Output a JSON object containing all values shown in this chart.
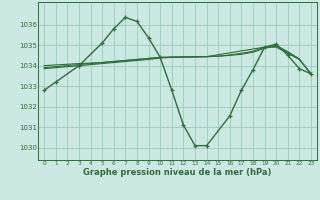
{
  "title": "Graphe pression niveau de la mer (hPa)",
  "bg_color": "#cce8e2",
  "grid_color": "#99ccbb",
  "line_color": "#2d6e3a",
  "xlim": [
    -0.5,
    23.5
  ],
  "ylim": [
    1029.4,
    1037.1
  ],
  "yticks": [
    1030,
    1031,
    1032,
    1033,
    1034,
    1035,
    1036
  ],
  "xticks": [
    0,
    1,
    2,
    3,
    4,
    5,
    6,
    7,
    8,
    9,
    10,
    11,
    12,
    13,
    14,
    15,
    16,
    17,
    18,
    19,
    20,
    21,
    22,
    23
  ],
  "main_x": [
    0,
    1,
    3,
    5,
    6,
    7,
    8,
    9,
    10,
    11,
    12,
    13,
    14,
    16,
    17,
    18,
    19,
    20,
    21,
    22,
    23
  ],
  "main_y": [
    1032.8,
    1033.2,
    1034.0,
    1035.1,
    1035.8,
    1036.35,
    1036.15,
    1035.35,
    1034.4,
    1032.8,
    1031.1,
    1030.1,
    1030.1,
    1031.55,
    1032.8,
    1033.8,
    1034.9,
    1035.05,
    1034.5,
    1033.85,
    1033.6
  ],
  "flat1_x": [
    0,
    1,
    2,
    3,
    4,
    5,
    6,
    7,
    8,
    9,
    10,
    11,
    12,
    13,
    14,
    15,
    16,
    17,
    18,
    19,
    20,
    21,
    22,
    23
  ],
  "flat1_y": [
    1033.9,
    1033.95,
    1034.0,
    1034.05,
    1034.1,
    1034.15,
    1034.2,
    1034.25,
    1034.3,
    1034.35,
    1034.4,
    1034.42,
    1034.43,
    1034.44,
    1034.44,
    1034.46,
    1034.5,
    1034.55,
    1034.65,
    1034.85,
    1034.95,
    1034.65,
    1034.3,
    1033.6
  ],
  "flat2_x": [
    0,
    1,
    2,
    3,
    4,
    5,
    6,
    7,
    8,
    9,
    10,
    11,
    12,
    13,
    14,
    15,
    16,
    17,
    18,
    19,
    20,
    21,
    22,
    23
  ],
  "flat2_y": [
    1033.85,
    1033.9,
    1033.95,
    1034.0,
    1034.05,
    1034.1,
    1034.15,
    1034.2,
    1034.25,
    1034.3,
    1034.37,
    1034.4,
    1034.41,
    1034.42,
    1034.43,
    1034.46,
    1034.52,
    1034.6,
    1034.7,
    1034.9,
    1034.98,
    1034.68,
    1034.32,
    1033.58
  ],
  "flat3_x": [
    0,
    3,
    5,
    8,
    10,
    14,
    19,
    20,
    21,
    22,
    23
  ],
  "flat3_y": [
    1034.0,
    1034.1,
    1034.15,
    1034.3,
    1034.4,
    1034.44,
    1034.9,
    1034.9,
    1034.6,
    1034.3,
    1033.6
  ]
}
